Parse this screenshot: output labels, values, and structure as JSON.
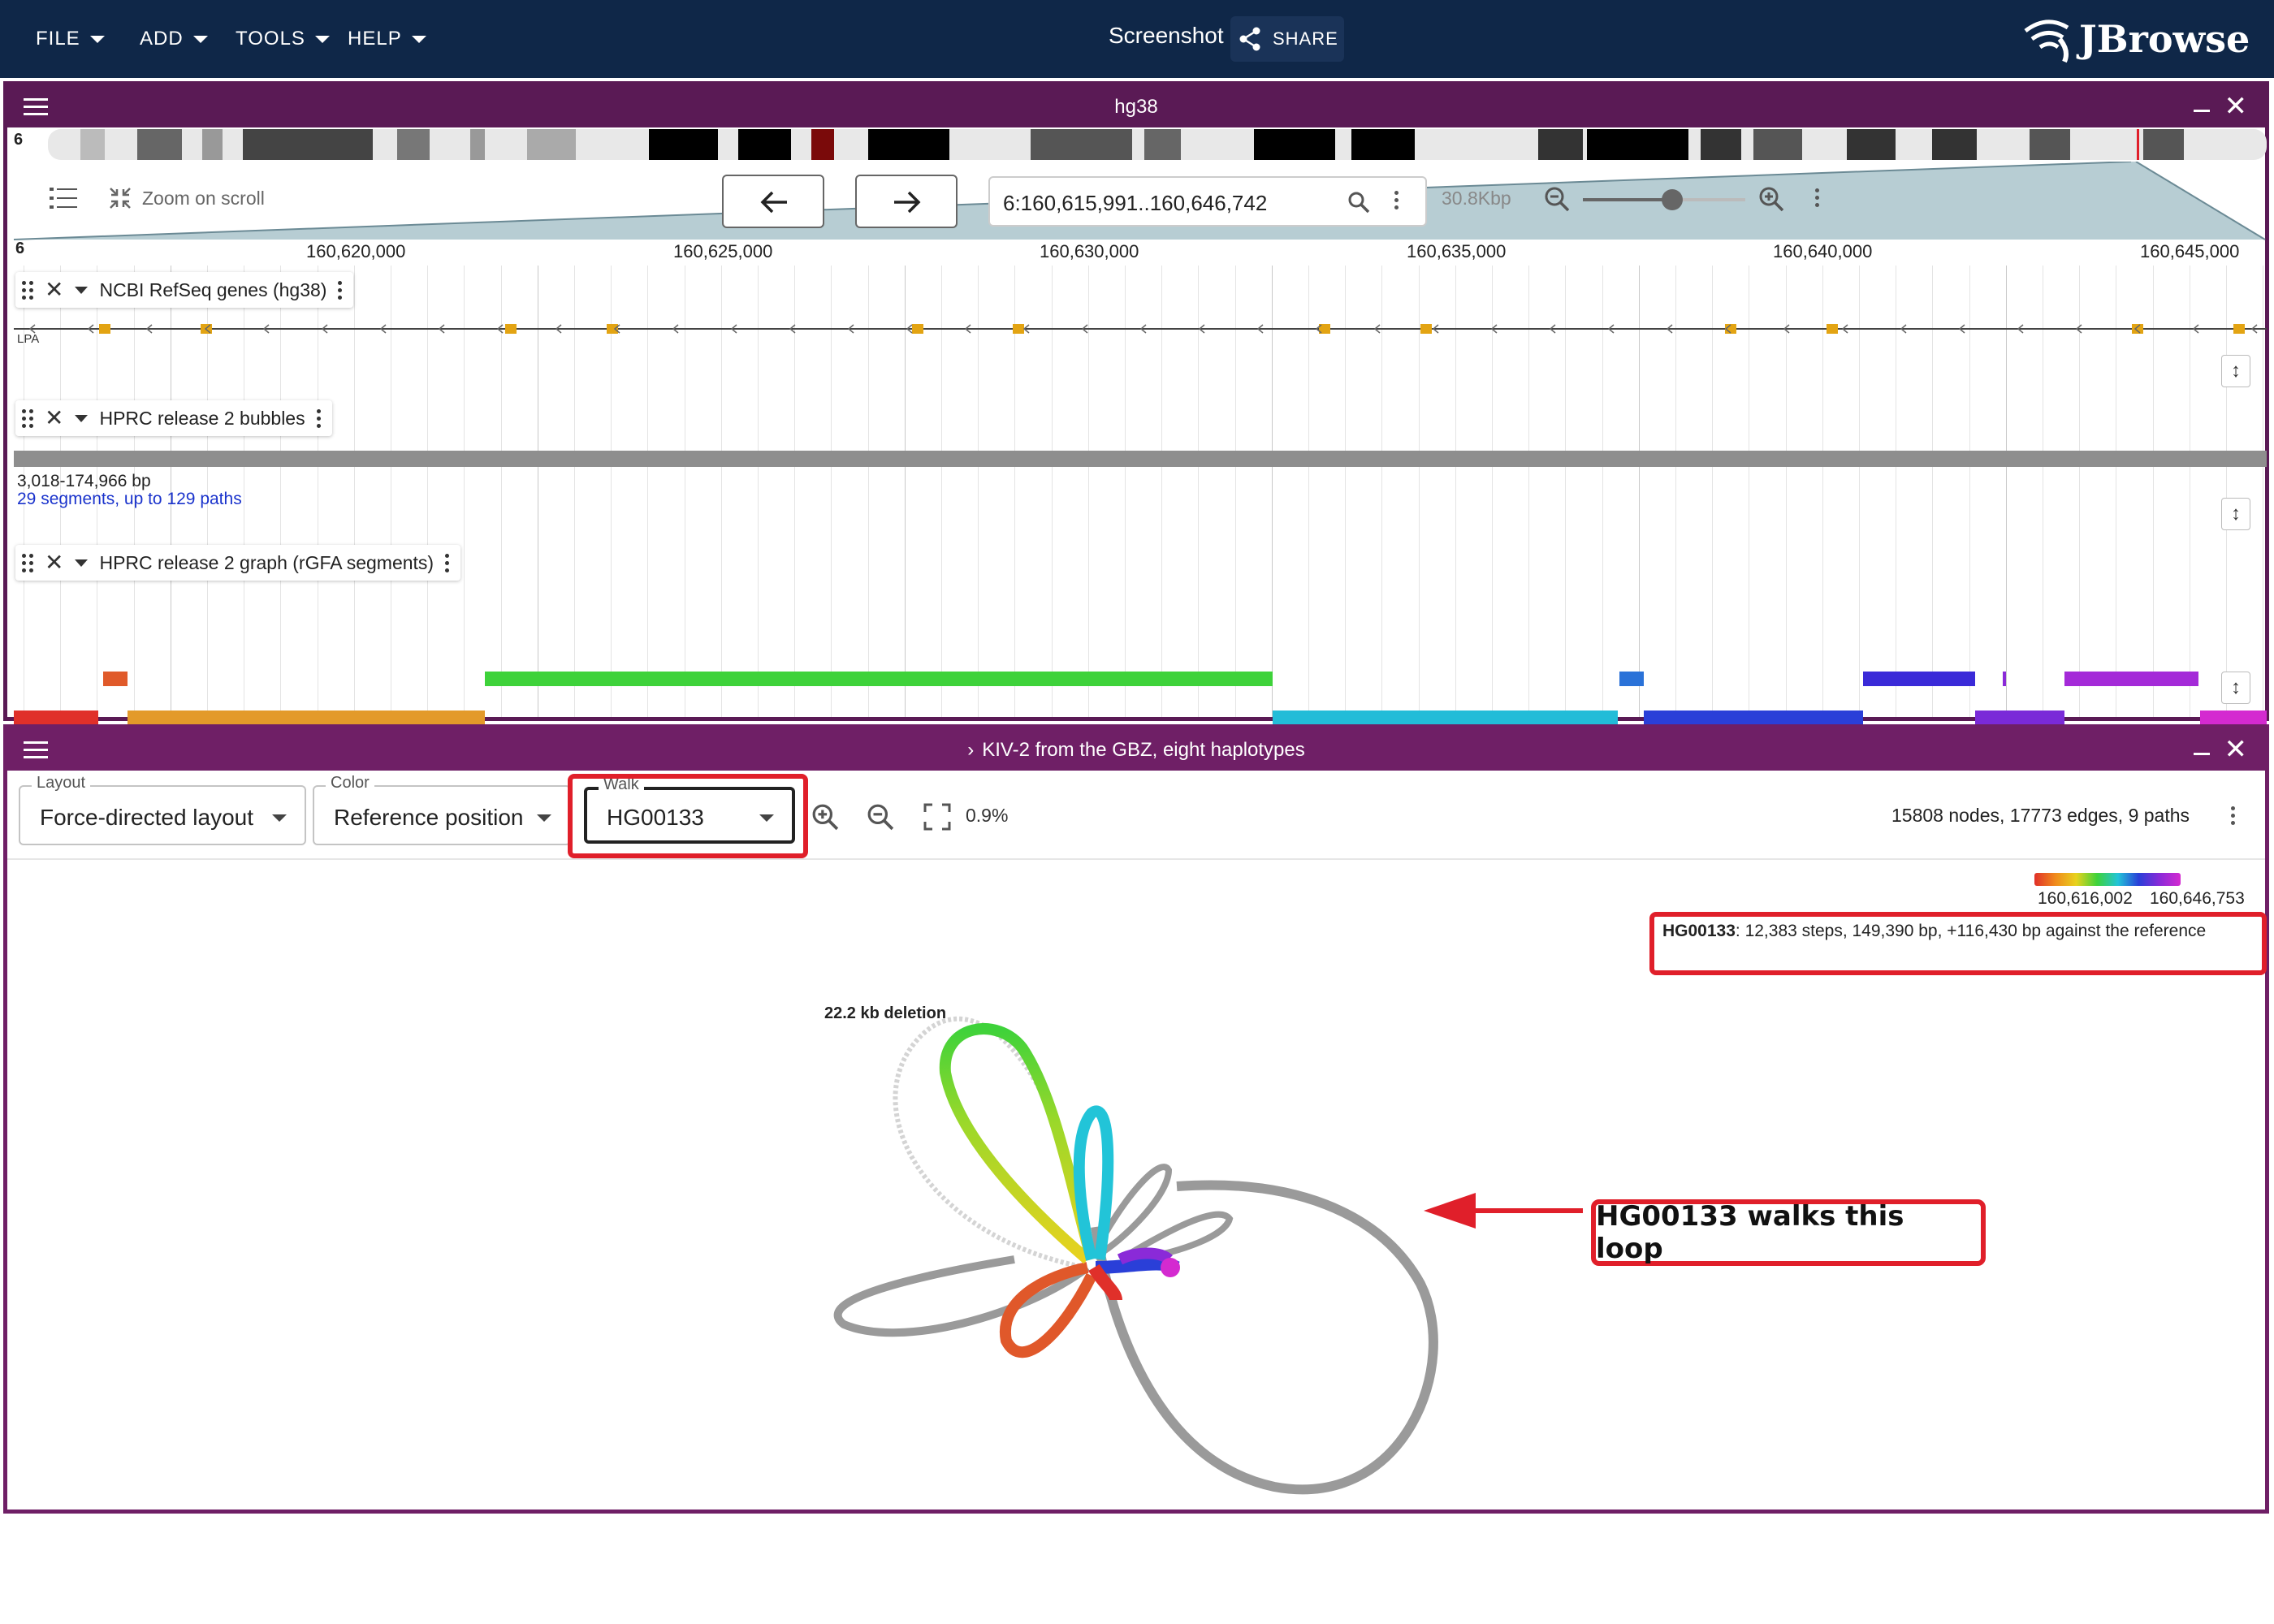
{
  "appbar": {
    "menus": [
      "FILE",
      "ADD",
      "TOOLS",
      "HELP"
    ],
    "session_title": "Screenshot",
    "share_label": "SHARE",
    "logo_text": "JBrowse",
    "bg_color": "#0f2748"
  },
  "linear_view": {
    "title": "hg38",
    "chrom_label": "6",
    "ruler_chrom": "6",
    "zoom_on_scroll": "Zoom on scroll",
    "locstring": "6:160,615,991..160,646,742",
    "span_label": "30.8Kbp",
    "zoom_level": 0.55,
    "ruler_ticks": [
      "160,620,000",
      "160,625,000",
      "160,630,000",
      "160,635,000",
      "160,640,000",
      "160,645,000"
    ],
    "tracks": {
      "genes": {
        "name": "NCBI RefSeq genes (hg38)",
        "gene_label": "LPA"
      },
      "bubbles": {
        "name": "HPRC release 2 bubbles",
        "size_text": "3,018-174,966 bp",
        "segments_text": "29 segments, up to 129 paths"
      },
      "graph": {
        "name": "HPRC release 2 graph (rGFA segments)"
      }
    }
  },
  "graph_view": {
    "title": "KIV-2 from the GBZ, eight haplotypes",
    "layout": {
      "label": "Layout",
      "value": "Force-directed layout"
    },
    "color": {
      "label": "Color",
      "value": "Reference position"
    },
    "walk": {
      "label": "Walk",
      "value": "HG00133"
    },
    "zoom_percent": "0.9%",
    "stats": "15808 nodes, 17773 edges, 9 paths",
    "legend_start": "160,616,002",
    "legend_end": "160,646,753",
    "walk_info_name": "HG00133",
    "walk_info_text": ": 12,383 steps, 149,390 bp, +116,430 bp against the reference",
    "deletion_label": "22.2 kb deletion",
    "callout": "HG00133 walks this loop",
    "highlight_color": "#e01f2a"
  }
}
